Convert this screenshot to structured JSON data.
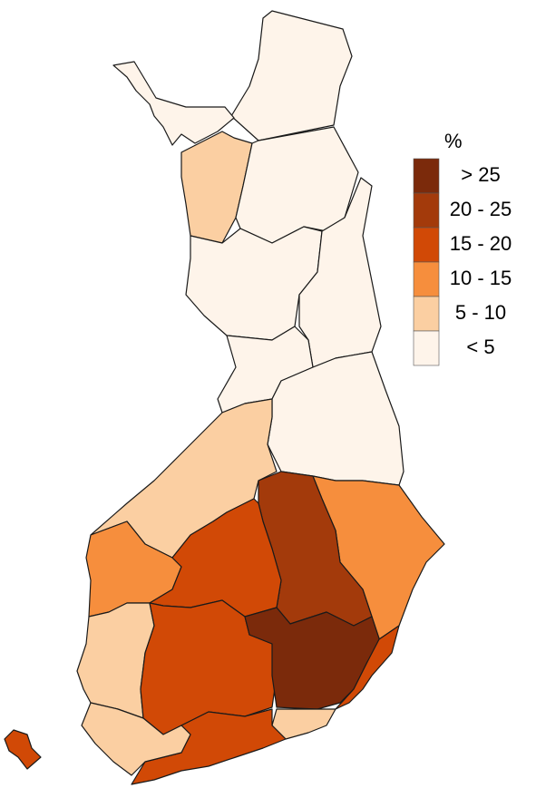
{
  "legend": {
    "title": "%",
    "items": [
      {
        "label": "> 25",
        "color": "#7b2a0b"
      },
      {
        "label": "20 - 25",
        "color": "#a33a0b"
      },
      {
        "label": "15 - 20",
        "color": "#d14906"
      },
      {
        "label": "10 - 15",
        "color": "#f68e3d"
      },
      {
        "label": "5 - 10",
        "color": "#fbcfa2"
      },
      {
        "label": "< 5",
        "color": "#fef4ea"
      }
    ]
  }
}
